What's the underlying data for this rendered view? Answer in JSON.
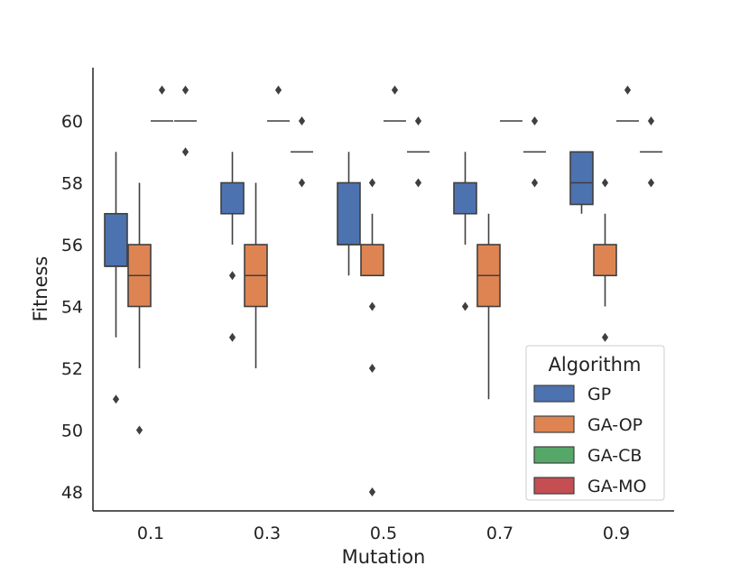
{
  "chart_data": {
    "type": "box",
    "xlabel": "Mutation",
    "ylabel": "Fitness",
    "categories": [
      "0.1",
      "0.3",
      "0.5",
      "0.7",
      "0.9"
    ],
    "yticks": [
      48,
      50,
      52,
      54,
      56,
      58,
      60
    ],
    "ylim": [
      47.4,
      61.7
    ],
    "grid": false,
    "legend": {
      "title": "Algorithm",
      "position": "lower-right"
    },
    "series": [
      {
        "name": "GP",
        "color": "#4c72b0",
        "boxes": [
          {
            "q1": 55.3,
            "median": 55.3,
            "q3": 57,
            "whislo": 53,
            "whishi": 59,
            "fliers": [
              51
            ]
          },
          {
            "q1": 57,
            "median": 57,
            "q3": 58,
            "whislo": 56,
            "whishi": 59,
            "fliers": [
              55,
              53
            ]
          },
          {
            "q1": 56,
            "median": 56,
            "q3": 58,
            "whislo": 55,
            "whishi": 59,
            "fliers": []
          },
          {
            "q1": 57,
            "median": 57,
            "q3": 58,
            "whislo": 56,
            "whishi": 59,
            "fliers": [
              54
            ]
          },
          {
            "q1": 57.3,
            "median": 58,
            "q3": 59,
            "whislo": 57,
            "whishi": 59,
            "fliers": []
          }
        ]
      },
      {
        "name": "GA-OP",
        "color": "#dd8452",
        "boxes": [
          {
            "q1": 54,
            "median": 55,
            "q3": 56,
            "whislo": 52,
            "whishi": 58,
            "fliers": [
              50
            ]
          },
          {
            "q1": 54,
            "median": 55,
            "q3": 56,
            "whislo": 52,
            "whishi": 58,
            "fliers": []
          },
          {
            "q1": 55,
            "median": 55,
            "q3": 56,
            "whislo": 55,
            "whishi": 57,
            "fliers": [
              58,
              54,
              52,
              48
            ]
          },
          {
            "q1": 54,
            "median": 55,
            "q3": 56,
            "whislo": 51,
            "whishi": 57,
            "fliers": []
          },
          {
            "q1": 55,
            "median": 55,
            "q3": 56,
            "whislo": 54,
            "whishi": 57,
            "fliers": [
              58,
              53,
              52
            ]
          }
        ]
      },
      {
        "name": "GA-CB",
        "color": "#55a868",
        "boxes": [
          {
            "q1": 60,
            "median": 60,
            "q3": 60,
            "whislo": 60,
            "whishi": 60,
            "fliers": [
              61
            ]
          },
          {
            "q1": 60,
            "median": 60,
            "q3": 60,
            "whislo": 60,
            "whishi": 60,
            "fliers": [
              61
            ]
          },
          {
            "q1": 60,
            "median": 60,
            "q3": 60,
            "whislo": 60,
            "whishi": 60,
            "fliers": [
              61
            ]
          },
          {
            "q1": 60,
            "median": 60,
            "q3": 60,
            "whislo": 60,
            "whishi": 60,
            "fliers": []
          },
          {
            "q1": 60,
            "median": 60,
            "q3": 60,
            "whislo": 60,
            "whishi": 60,
            "fliers": [
              61
            ]
          }
        ]
      },
      {
        "name": "GA-MO",
        "color": "#c44e52",
        "boxes": [
          {
            "q1": 60,
            "median": 60,
            "q3": 60,
            "whislo": 60,
            "whishi": 60,
            "fliers": [
              61,
              59
            ]
          },
          {
            "q1": 59,
            "median": 59,
            "q3": 59,
            "whislo": 59,
            "whishi": 59,
            "fliers": [
              60,
              58
            ]
          },
          {
            "q1": 59,
            "median": 59,
            "q3": 59,
            "whislo": 59,
            "whishi": 59,
            "fliers": [
              60,
              58
            ]
          },
          {
            "q1": 59,
            "median": 59,
            "q3": 59,
            "whislo": 59,
            "whishi": 59,
            "fliers": [
              60,
              58
            ]
          },
          {
            "q1": 59,
            "median": 59,
            "q3": 59,
            "whislo": 59,
            "whishi": 59,
            "fliers": [
              60,
              58
            ]
          }
        ]
      }
    ]
  }
}
